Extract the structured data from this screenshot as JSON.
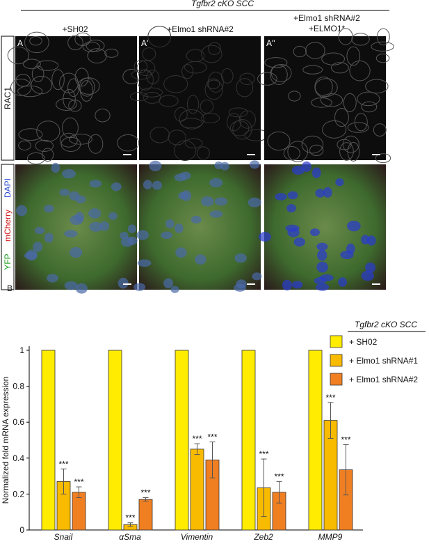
{
  "figure": {
    "header": "Tgfbr2 cKO SCC",
    "columns": [
      "+SH02",
      "+Elmo1 shRNA#2",
      "+Elmo1 shRNA#2",
      "+ELMO1*"
    ],
    "panels": [
      "A",
      "A'",
      "A''"
    ],
    "row_labels": [
      "RAC1",
      "YFP",
      "mCherry",
      "DAPI"
    ],
    "panel_b": "B"
  },
  "chart_data": {
    "type": "bar",
    "ylabel": "Normalized fold mRNA expression",
    "categories": [
      "Snail",
      "αSma",
      "Vimentin",
      "Zeb2",
      "MMP9"
    ],
    "legend_title": "Tgfbr2 cKO SCC",
    "series": [
      {
        "name": "+ SH02",
        "color": "#ffec00",
        "values": [
          1,
          1,
          1,
          1,
          1
        ]
      },
      {
        "name": "+ Elmo1 shRNA#1",
        "color": "#f9bb00",
        "values": [
          0.27,
          0.03,
          0.45,
          0.235,
          0.61
        ],
        "errors": [
          0.07,
          0.01,
          0.03,
          0.16,
          0.1
        ],
        "significance": [
          "***",
          "***",
          "***",
          "***",
          "***"
        ]
      },
      {
        "name": "+ Elmo1 shRNA#2",
        "color": "#f07f22",
        "values": [
          0.21,
          0.17,
          0.39,
          0.21,
          0.335
        ],
        "errors": [
          0.03,
          0.01,
          0.1,
          0.06,
          0.14
        ],
        "significance": [
          "***",
          "***",
          "***",
          "***",
          "***"
        ]
      }
    ],
    "ylim": [
      0,
      1
    ],
    "yticks": [
      0,
      0.2,
      0.4,
      0.6,
      0.8,
      1
    ]
  }
}
